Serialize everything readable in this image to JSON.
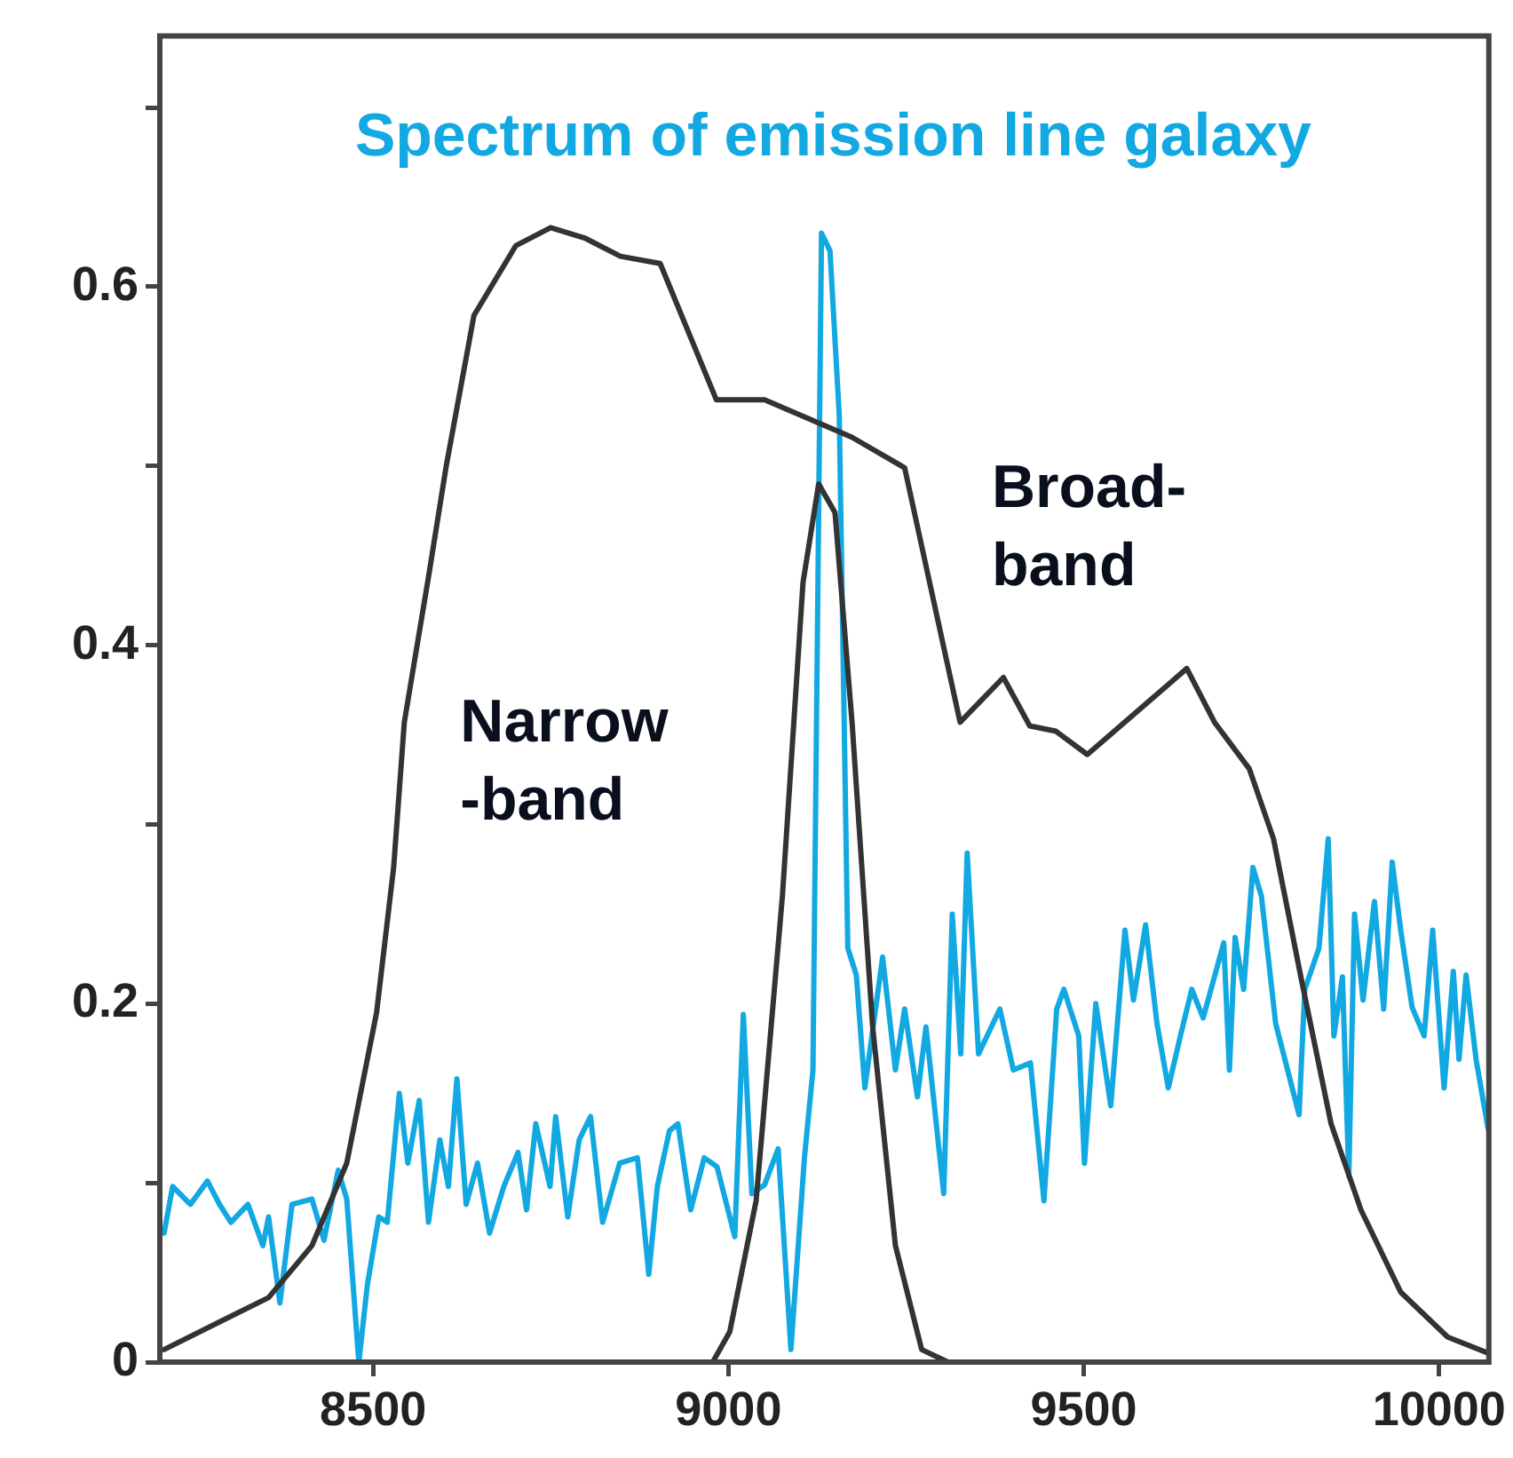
{
  "chart_data": {
    "type": "line",
    "title": "Spectrum of emission line galaxy",
    "marker": "none",
    "xlim": [
      8200,
      10070
    ],
    "ylim": [
      0,
      0.74
    ],
    "xticks": [
      8500,
      9000,
      9500,
      10000
    ],
    "yticks": [
      0,
      {
        "value": 0.1,
        "label": null
      },
      0.2,
      {
        "value": 0.3,
        "label": null
      },
      0.4,
      {
        "value": 0.5,
        "label": null
      },
      0.6,
      {
        "value": 0.7,
        "label": null
      }
    ],
    "annotations": [
      "Narrow\n-band",
      "Broad-\nband"
    ],
    "series": [
      {
        "color": "#333333",
        "x": [
          8206,
          8353,
          8414,
          8463,
          8505,
          8529,
          8544,
          8578,
          8603,
          8642,
          8701,
          8750,
          8799,
          8848,
          8904,
          8983,
          9051,
          9174,
          9248,
          9326,
          9387,
          9424,
          9461,
          9505,
          9645,
          9684,
          9733,
          9767,
          9806,
          9848,
          9890,
          9946,
          10012,
          10069
        ],
        "values": [
          0.007,
          0.036,
          0.065,
          0.111,
          0.195,
          0.276,
          0.357,
          0.438,
          0.5,
          0.584,
          0.623,
          0.633,
          0.627,
          0.617,
          0.613,
          0.537,
          0.537,
          0.516,
          0.499,
          0.357,
          0.382,
          0.355,
          0.352,
          0.339,
          0.387,
          0.357,
          0.331,
          0.292,
          0.214,
          0.133,
          0.085,
          0.039,
          0.014,
          0.005
        ]
      },
      {
        "color": "#333333",
        "x": [
          8978,
          9002,
          9039,
          9076,
          9105,
          9127,
          9150,
          9174,
          9203,
          9235,
          9272,
          9309
        ],
        "values": [
          0,
          0.017,
          0.09,
          0.26,
          0.435,
          0.49,
          0.474,
          0.357,
          0.187,
          0.065,
          0.007,
          0
        ]
      },
      {
        "color": "#12a8e2",
        "x": [
          8206,
          8218,
          8243,
          8267,
          8284,
          8300,
          8324,
          8345,
          8353,
          8369,
          8386,
          8414,
          8431,
          8451,
          8463,
          8480,
          8492,
          8508,
          8520,
          8537,
          8549,
          8565,
          8578,
          8594,
          8606,
          8618,
          8631,
          8647,
          8664,
          8684,
          8704,
          8716,
          8729,
          8749,
          8757,
          8774,
          8790,
          8806,
          8823,
          8847,
          8872,
          8888,
          8900,
          8917,
          8929,
          8947,
          8966,
          8984,
          9009,
          9021,
          9033,
          9051,
          9070,
          9088,
          9107,
          9119,
          9131,
          9143,
          9156,
          9168,
          9180,
          9192,
          9217,
          9235,
          9248,
          9266,
          9278,
          9303,
          9315,
          9327,
          9336,
          9352,
          9370,
          9382,
          9401,
          9425,
          9444,
          9462,
          9472,
          9493,
          9501,
          9517,
          9538,
          9558,
          9570,
          9587,
          9603,
          9619,
          9636,
          9652,
          9668,
          9697,
          9705,
          9713,
          9725,
          9738,
          9750,
          9770,
          9803,
          9811,
          9831,
          9844,
          9852,
          9864,
          9873,
          9881,
          9893,
          9909,
          9922,
          9934,
          9946,
          9962,
          9979,
          9991,
          10007,
          10020,
          10028,
          10038,
          10052,
          10069
        ],
        "values": [
          0.072,
          0.098,
          0.088,
          0.101,
          0.088,
          0.078,
          0.088,
          0.065,
          0.081,
          0.033,
          0.088,
          0.091,
          0.068,
          0.107,
          0.091,
          0,
          0.043,
          0.081,
          0.078,
          0.15,
          0.111,
          0.146,
          0.078,
          0.124,
          0.098,
          0.158,
          0.088,
          0.111,
          0.072,
          0.098,
          0.117,
          0.085,
          0.133,
          0.098,
          0.137,
          0.081,
          0.124,
          0.137,
          0.078,
          0.111,
          0.114,
          0.049,
          0.098,
          0.129,
          0.133,
          0.085,
          0.114,
          0.109,
          0.07,
          0.194,
          0.094,
          0.099,
          0.119,
          0.007,
          0.114,
          0.163,
          0.63,
          0.62,
          0.528,
          0.231,
          0.216,
          0.153,
          0.226,
          0.163,
          0.197,
          0.148,
          0.187,
          0.094,
          0.25,
          0.172,
          0.284,
          0.172,
          0.187,
          0.197,
          0.163,
          0.167,
          0.09,
          0.197,
          0.208,
          0.182,
          0.111,
          0.2,
          0.143,
          0.241,
          0.202,
          0.244,
          0.189,
          0.153,
          0.182,
          0.208,
          0.192,
          0.234,
          0.163,
          0.237,
          0.208,
          0.276,
          0.26,
          0.189,
          0.138,
          0.208,
          0.231,
          0.292,
          0.182,
          0.215,
          0.104,
          0.25,
          0.202,
          0.257,
          0.197,
          0.279,
          0.241,
          0.198,
          0.182,
          0.241,
          0.153,
          0.218,
          0.169,
          0.216,
          0.169,
          0.13
        ]
      }
    ]
  }
}
